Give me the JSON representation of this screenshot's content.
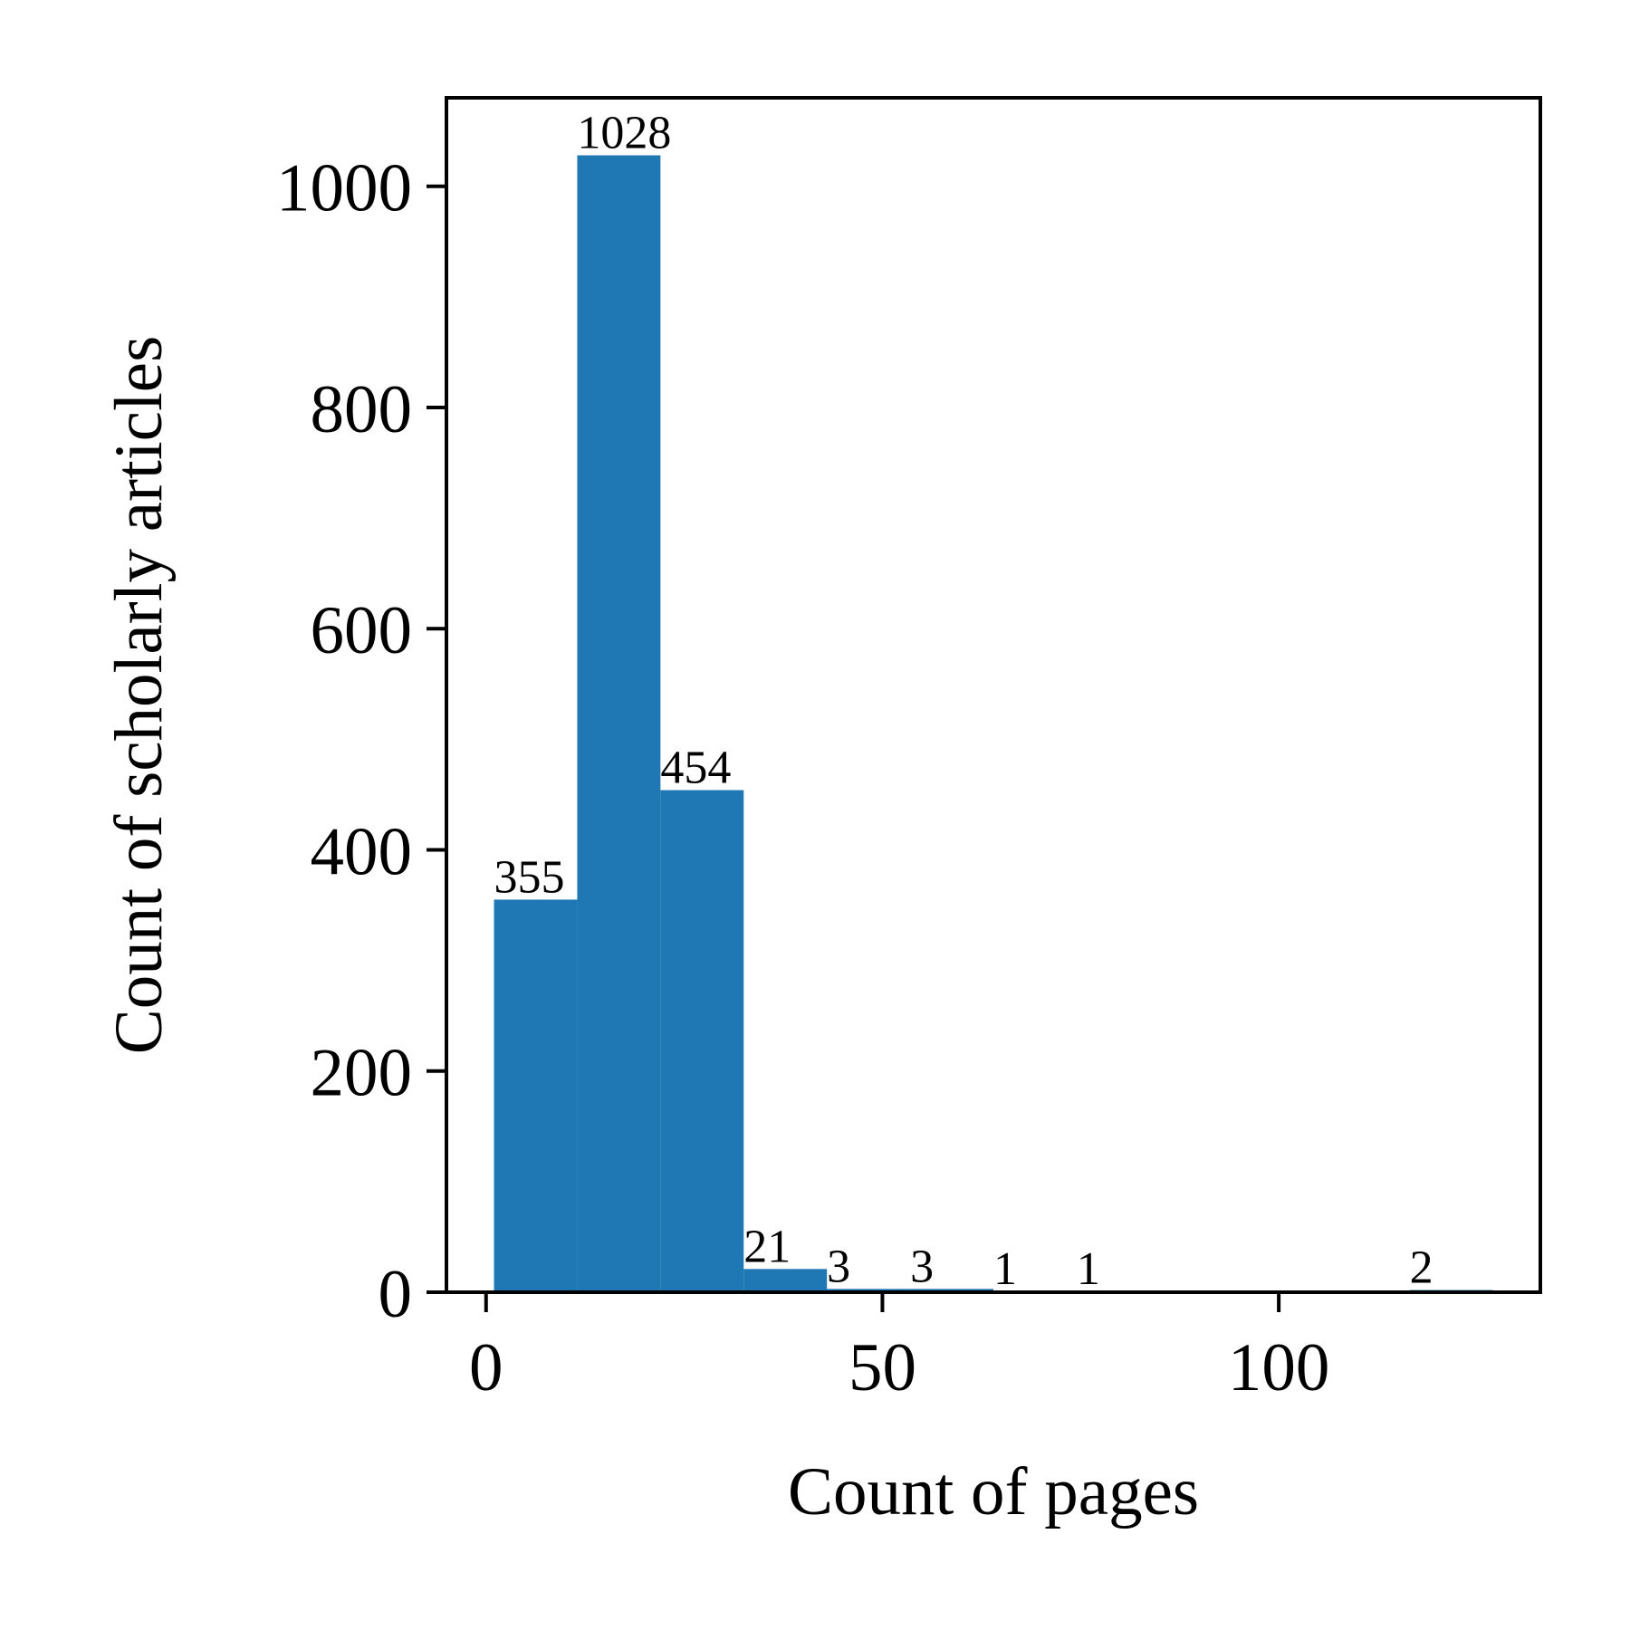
{
  "chart_data": {
    "type": "bar",
    "xlabel": "Count of pages",
    "ylabel": "Count of scholarly articles",
    "xlim": [
      -5,
      133
    ],
    "ylim": [
      0,
      1080
    ],
    "xticks": [
      0,
      50,
      100
    ],
    "yticks": [
      0,
      200,
      400,
      600,
      800,
      1000
    ],
    "bin_edges": [
      1,
      11.5,
      22,
      32.5,
      43,
      53.5,
      64,
      74.5,
      85,
      95.5,
      106,
      116.5,
      127
    ],
    "values": [
      355,
      1028,
      454,
      21,
      3,
      3,
      1,
      1,
      0,
      0,
      0,
      2
    ],
    "bar_color": "#1f77b4",
    "grid": false,
    "legend": "none"
  }
}
